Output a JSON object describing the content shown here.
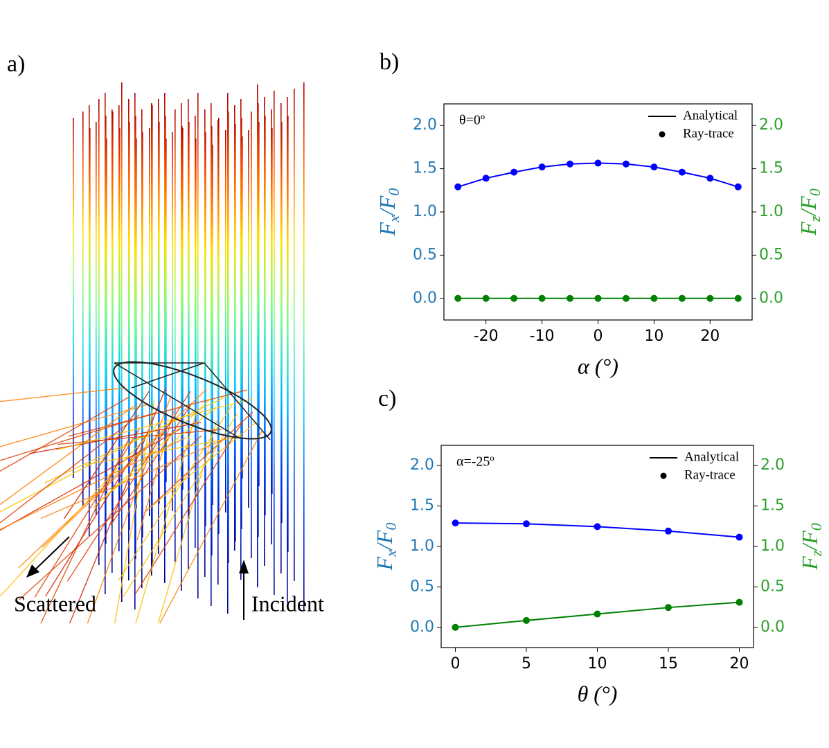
{
  "panel_a": {
    "label": "a)",
    "annotations": [
      "Scattered",
      "Incident"
    ]
  },
  "chart_data": [
    {
      "type": "line",
      "panel_label": "b)",
      "annotation": "θ=0º",
      "xlabel": "α (°)",
      "ylabel": [
        "F",
        "x",
        "/F",
        "0"
      ],
      "y2label": [
        "F",
        "z",
        "/F",
        "0"
      ],
      "x": [
        -25,
        -20,
        -15,
        -10,
        -5,
        0,
        5,
        10,
        15,
        20,
        25
      ],
      "series": [
        {
          "axis": "y",
          "color": "#0000ff",
          "values": [
            1.29,
            1.39,
            1.46,
            1.52,
            1.555,
            1.565,
            1.555,
            1.52,
            1.46,
            1.39,
            1.29
          ]
        },
        {
          "axis": "y2",
          "color": "#008000",
          "values": [
            0,
            0,
            0,
            0,
            0,
            0,
            0,
            0,
            0,
            0,
            0
          ]
        }
      ],
      "legend": [
        {
          "label": "Analytical",
          "marker": "line"
        },
        {
          "label": "Ray-trace",
          "marker": "dot"
        }
      ],
      "xlim": [
        -27.5,
        27.5
      ],
      "xticks": [
        -20,
        -10,
        0,
        10,
        20
      ],
      "ylim": [
        -0.25,
        2.25
      ],
      "y2lim": [
        -0.25,
        2.25
      ],
      "yticks": [
        {
          "value": 0,
          "label": "0.0"
        },
        {
          "value": 0.5,
          "label": "0.5"
        },
        {
          "value": 1,
          "label": "1.0"
        },
        {
          "value": 1.5,
          "label": "1.5"
        },
        {
          "value": 2,
          "label": "2.0"
        }
      ],
      "y2ticks": [
        {
          "value": 0,
          "label": "0.0"
        },
        {
          "value": 0.5,
          "label": "0.5"
        },
        {
          "value": 1,
          "label": "1.0"
        },
        {
          "value": 1.5,
          "label": "1.5"
        },
        {
          "value": 2,
          "label": "2.0"
        }
      ],
      "y_color": "#1f77b4",
      "y2_color": "#2ca02c"
    },
    {
      "type": "line",
      "panel_label": "c)",
      "annotation": "α=-25º",
      "xlabel": "θ (°)",
      "ylabel": [
        "F",
        "x",
        "/F",
        "0"
      ],
      "y2label": [
        "F",
        "z",
        "/F",
        "0"
      ],
      "x": [
        0,
        5,
        10,
        15,
        20
      ],
      "series": [
        {
          "axis": "y",
          "color": "#0000ff",
          "values": [
            1.29,
            1.28,
            1.245,
            1.19,
            1.115
          ]
        },
        {
          "axis": "y2",
          "color": "#008000",
          "values": [
            0,
            0.085,
            0.165,
            0.245,
            0.31
          ]
        }
      ],
      "legend": [
        {
          "label": "Analytical",
          "marker": "line"
        },
        {
          "label": "Ray-trace",
          "marker": "dot"
        }
      ],
      "xlim": [
        -1,
        21
      ],
      "xticks": [
        0,
        5,
        10,
        15,
        20
      ],
      "ylim": [
        -0.25,
        2.25
      ],
      "y2lim": [
        -0.25,
        2.25
      ],
      "yticks": [
        {
          "value": 0,
          "label": "0.0"
        },
        {
          "value": 0.5,
          "label": "0.5"
        },
        {
          "value": 1,
          "label": "1.0"
        },
        {
          "value": 1.5,
          "label": "1.5"
        },
        {
          "value": 2,
          "label": "2.0"
        }
      ],
      "y2ticks": [
        {
          "value": 0,
          "label": "0.0"
        },
        {
          "value": 0.5,
          "label": "0.5"
        },
        {
          "value": 1,
          "label": "1.0"
        },
        {
          "value": 1.5,
          "label": "1.5"
        },
        {
          "value": 2,
          "label": "2.0"
        }
      ],
      "y_color": "#1f77b4",
      "y2_color": "#2ca02c"
    }
  ]
}
